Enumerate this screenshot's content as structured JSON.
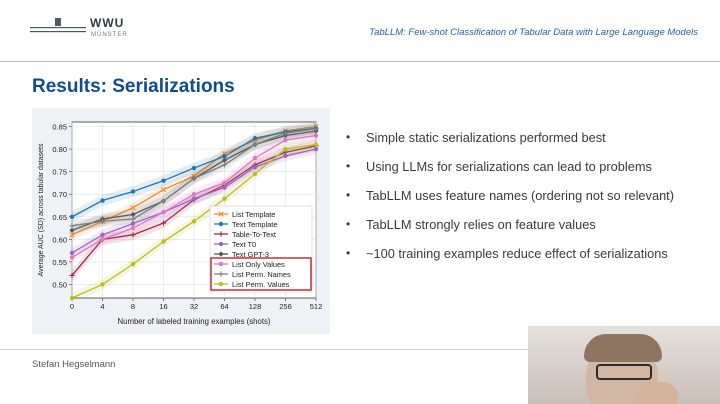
{
  "header": {
    "logo_text": "WWU",
    "logo_sub": "MÜNSTER",
    "talk_title": "TabLLM: Few-shot Classification of Tabular Data with Large Language Models"
  },
  "slide": {
    "heading": "Results: Serializations",
    "bullets": [
      "Simple static serializations performed best",
      "Using LLMs for serializations can lead to problems",
      "TabLLM uses feature names (ordering not so relevant)",
      "TabLLM strongly relies on feature values",
      "~100 training examples reduce effect of serializations"
    ],
    "bullet_symbol": "•"
  },
  "footer": {
    "presenter": "Stefan Hegselmann"
  },
  "colors": {
    "heading": "#0d4e8a",
    "talk_title": "#2b5f9e",
    "legend_highlight": "#c0202a"
  },
  "chart_data": {
    "type": "line",
    "x": [
      0,
      4,
      8,
      16,
      32,
      64,
      128,
      256,
      512
    ],
    "x_tick_labels": [
      "0",
      "4",
      "8",
      "16",
      "32",
      "64",
      "128",
      "256",
      "512"
    ],
    "xlabel": "Number of labeled training examples (shots)",
    "ylabel": "Average AUC (SD) across tabular datasets",
    "ylim": [
      0.47,
      0.86
    ],
    "y_ticks": [
      "0.50",
      "0.55",
      "0.60",
      "0.65",
      "0.70",
      "0.75",
      "0.80",
      "0.85"
    ],
    "grid": true,
    "legend_position": "lower-right",
    "highlighted_legend_group": [
      "List Only Values",
      "List Perm. Names",
      "List Perm. Values"
    ],
    "series": [
      {
        "name": "List Template",
        "color": "#f28e2b",
        "marker": "x",
        "values": [
          0.61,
          0.64,
          0.67,
          0.71,
          0.74,
          0.79,
          0.82,
          0.84,
          0.85
        ]
      },
      {
        "name": "Text Template",
        "color": "#1f77b4",
        "marker": "circle",
        "values": [
          0.65,
          0.686,
          0.706,
          0.73,
          0.758,
          0.784,
          0.824,
          0.838,
          0.846
        ]
      },
      {
        "name": "Table-To-Text",
        "color": "#a12845",
        "marker": "plus",
        "values": [
          0.52,
          0.6,
          0.61,
          0.636,
          0.688,
          0.72,
          0.765,
          0.793,
          0.807
        ]
      },
      {
        "name": "Text T0",
        "color": "#9467bd",
        "marker": "circle",
        "values": [
          0.57,
          0.61,
          0.635,
          0.66,
          0.69,
          0.715,
          0.76,
          0.785,
          0.8
        ]
      },
      {
        "name": "Text GPT-3",
        "color": "#555555",
        "marker": "diamond",
        "values": [
          0.62,
          0.645,
          0.655,
          0.685,
          0.735,
          0.775,
          0.81,
          0.83,
          0.84
        ]
      },
      {
        "name": "List Only Values",
        "color": "#e377c2",
        "marker": "circle",
        "values": [
          0.56,
          0.6,
          0.625,
          0.66,
          0.7,
          0.725,
          0.78,
          0.82,
          0.83
        ]
      },
      {
        "name": "List Perm. Names",
        "color": "#7f7f7f",
        "marker": "plus",
        "values": [
          0.63,
          0.64,
          0.645,
          0.685,
          0.735,
          0.765,
          0.81,
          0.835,
          0.845
        ]
      },
      {
        "name": "List Perm. Values",
        "color": "#bcbd22",
        "marker": "circle",
        "values": [
          0.47,
          0.5,
          0.545,
          0.595,
          0.64,
          0.69,
          0.745,
          0.8,
          0.81
        ]
      }
    ]
  }
}
